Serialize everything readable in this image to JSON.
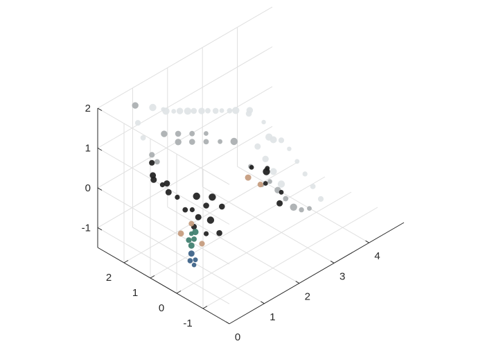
{
  "chart_data": {
    "type": "scatter",
    "projection": "3d-isometric",
    "title": "",
    "xlabel": "",
    "ylabel": "",
    "zlabel": "",
    "grid": true,
    "xlim": [
      0,
      5
    ],
    "ylim": [
      -2,
      3
    ],
    "zlim": [
      -1.5,
      2
    ],
    "xticks": [
      "0",
      "1",
      "2",
      "3",
      "4"
    ],
    "yticks": [
      "-1",
      "0",
      "1",
      "2"
    ],
    "zticks": [
      "-1",
      "0",
      "1",
      "2"
    ],
    "colors": {
      "axis": "#262626",
      "grid": "#dfdfdf",
      "wall_light": "#e4e8ea",
      "wall_mid": "#c3c8ca",
      "wall_dark": "#8e9496",
      "dark_objects": "#1e1e1e",
      "person_shirt": "#3d7d6c",
      "person_jeans": "#3a5f86"
    },
    "series": [
      {
        "color": "#e0e4e6",
        "points": [
          [
            1.2,
            2.5,
            1.6
          ],
          [
            1.5,
            2.5,
            1.4
          ],
          [
            1.8,
            2.5,
            1.2
          ],
          [
            2.2,
            2.5,
            1.0
          ],
          [
            2.6,
            2.5,
            0.8
          ],
          [
            3.0,
            2.5,
            0.6
          ],
          [
            3.4,
            2.5,
            0.4
          ],
          [
            1.2,
            2.0,
            1.7
          ],
          [
            1.6,
            2.0,
            1.5
          ],
          [
            2.0,
            2.0,
            1.3
          ],
          [
            2.4,
            2.0,
            1.1
          ],
          [
            2.8,
            2.0,
            0.9
          ],
          [
            3.2,
            2.0,
            0.7
          ],
          [
            3.6,
            2.0,
            0.5
          ],
          [
            1.0,
            2.8,
            1.2
          ],
          [
            1.0,
            2.6,
            0.9
          ],
          [
            3.8,
            2.3,
            0.2
          ],
          [
            4.0,
            2.0,
            0.0
          ],
          [
            4.0,
            1.8,
            -0.3
          ],
          [
            3.9,
            1.5,
            -0.2
          ],
          [
            3.9,
            1.2,
            -0.1
          ],
          [
            3.9,
            0.9,
            -0.2
          ],
          [
            3.9,
            0.6,
            -0.4
          ],
          [
            3.9,
            0.3,
            -0.6
          ],
          [
            3.9,
            0.0,
            -0.8
          ],
          [
            3.9,
            -0.3,
            -1.0
          ],
          [
            3.9,
            1.8,
            -0.8
          ],
          [
            3.9,
            1.5,
            -1.0
          ],
          [
            3.9,
            1.2,
            -1.2
          ],
          [
            3.9,
            2.1,
            -0.6
          ]
        ]
      },
      {
        "color": "#a9aeb0",
        "points": [
          [
            1.3,
            2.2,
            1.0
          ],
          [
            1.7,
            2.2,
            0.8
          ],
          [
            2.1,
            2.2,
            0.6
          ],
          [
            2.5,
            2.2,
            0.4
          ],
          [
            1.4,
            1.8,
            0.9
          ],
          [
            1.8,
            1.8,
            0.7
          ],
          [
            2.2,
            1.8,
            0.5
          ],
          [
            2.6,
            1.8,
            0.3
          ],
          [
            3.0,
            1.8,
            0.1
          ],
          [
            3.8,
            1.5,
            -1.2
          ],
          [
            3.8,
            1.2,
            -1.3
          ],
          [
            3.8,
            0.9,
            -1.4
          ],
          [
            3.8,
            0.6,
            -1.5
          ],
          [
            3.8,
            0.3,
            -1.45
          ],
          [
            3.8,
            1.8,
            -1.4
          ],
          [
            3.8,
            0.0,
            -1.3
          ],
          [
            1.1,
            2.4,
            0.5
          ],
          [
            1.1,
            2.2,
            0.4
          ],
          [
            1.0,
            2.9,
            1.6
          ],
          [
            3.7,
            2.1,
            -1.0
          ]
        ]
      },
      {
        "color": "#1e1e1e",
        "points": [
          [
            1.0,
            2.2,
            0.0
          ],
          [
            1.1,
            2.0,
            -0.1
          ],
          [
            0.9,
            2.1,
            0.2
          ],
          [
            1.2,
            1.9,
            -0.3
          ],
          [
            1.0,
            1.7,
            0.1
          ],
          [
            1.3,
            1.7,
            -0.4
          ],
          [
            1.5,
            1.4,
            -0.7
          ],
          [
            1.6,
            1.3,
            -0.9
          ],
          [
            1.4,
            1.2,
            -1.0
          ],
          [
            1.7,
            1.5,
            -0.5
          ],
          [
            1.9,
            1.4,
            -0.8
          ],
          [
            1.8,
            1.1,
            -1.0
          ],
          [
            2.0,
            1.3,
            -0.6
          ],
          [
            2.2,
            1.2,
            -0.9
          ],
          [
            1.6,
            1.0,
            -1.2
          ],
          [
            1.9,
            0.9,
            -1.3
          ],
          [
            1.3,
            1.4,
            -0.6
          ],
          [
            3.5,
            1.2,
            -0.6
          ],
          [
            3.3,
            1.0,
            -0.8
          ],
          [
            3.6,
            0.8,
            -1.1
          ],
          [
            3.2,
            1.4,
            -0.5
          ],
          [
            3.7,
            1.5,
            -0.9
          ],
          [
            3.4,
            0.6,
            -1.2
          ],
          [
            1.1,
            2.4,
            0.3
          ]
        ]
      },
      {
        "color": "#3d7d6c",
        "points": [
          [
            0.8,
            0.5,
            -0.6
          ],
          [
            0.8,
            0.4,
            -0.7
          ],
          [
            0.8,
            0.6,
            -0.8
          ],
          [
            0.8,
            0.5,
            -0.9
          ],
          [
            0.8,
            0.35,
            -0.5
          ]
        ]
      },
      {
        "color": "#3a5f86",
        "points": [
          [
            0.8,
            0.5,
            -1.1
          ],
          [
            0.8,
            0.35,
            -1.2
          ],
          [
            0.8,
            0.55,
            -1.3
          ],
          [
            0.8,
            0.4,
            -1.35
          ]
        ]
      },
      {
        "color": "#c49a7c",
        "points": [
          [
            0.8,
            0.5,
            -0.35
          ],
          [
            0.8,
            0.1,
            -0.7
          ],
          [
            0.8,
            0.9,
            -0.75
          ],
          [
            2.8,
            1.0,
            -0.4
          ],
          [
            3.0,
            0.8,
            -0.6
          ]
        ]
      }
    ]
  }
}
